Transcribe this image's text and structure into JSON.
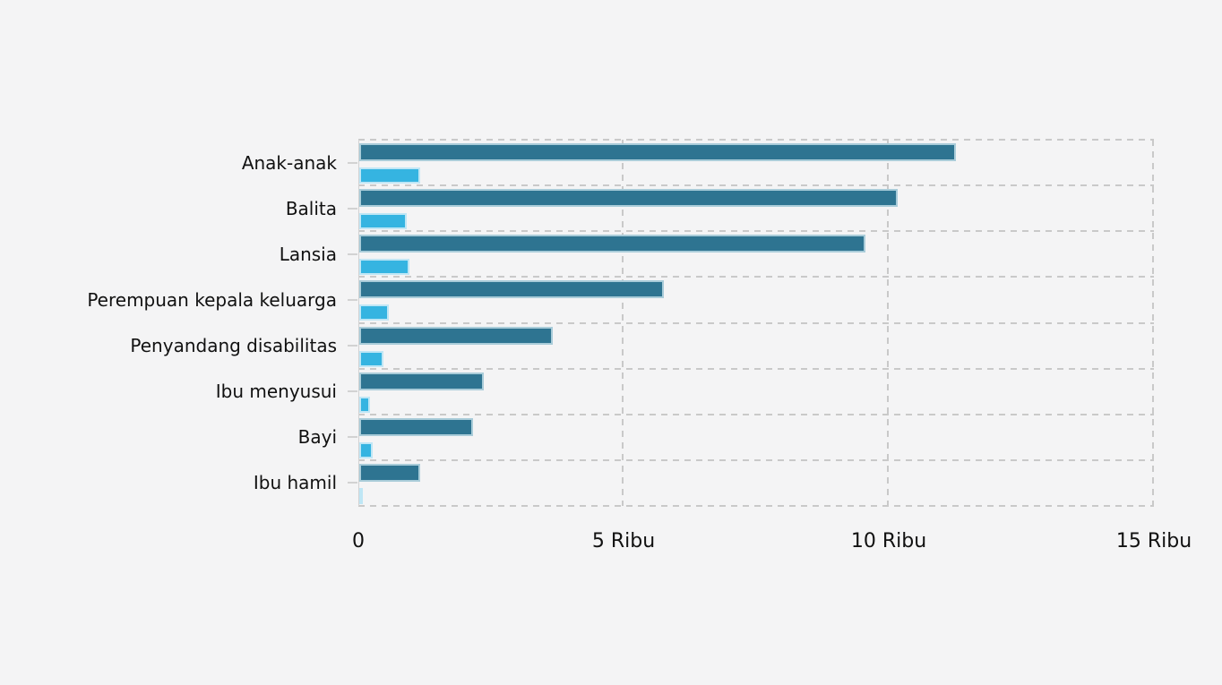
{
  "chart_data": {
    "type": "bar",
    "orientation": "horizontal",
    "title": "",
    "xlabel": "",
    "ylabel": "",
    "xlim": [
      0,
      15000
    ],
    "grid": "dashed",
    "legend_position": "none",
    "categories": [
      "Anak-anak",
      "Balita",
      "Lansia",
      "Perempuan kepala keluarga",
      "Penyandang disabilitas",
      "Ibu menyusui",
      "Bayi",
      "Ibu hamil"
    ],
    "series": [
      {
        "name": "series-dark-teal",
        "color": "#2e7491",
        "border_color": "#a9ccd9",
        "values": [
          11250,
          10150,
          9550,
          5750,
          3650,
          2350,
          2150,
          1150
        ]
      },
      {
        "name": "series-light-blue",
        "color": "#35b4e1",
        "border_color": "#bfe6f5",
        "values": [
          1150,
          900,
          950,
          550,
          450,
          200,
          250,
          50
        ]
      }
    ],
    "x_ticks": [
      {
        "value": 0,
        "label": "0"
      },
      {
        "value": 5000,
        "label": "5 Ribu"
      },
      {
        "value": 10000,
        "label": "10 Ribu"
      },
      {
        "value": 15000,
        "label": "15 Ribu"
      }
    ]
  },
  "colors": {
    "background": "#f4f4f5",
    "grid": "#c9c9c9",
    "axis": "#d2d2d2",
    "text": "#111111"
  }
}
